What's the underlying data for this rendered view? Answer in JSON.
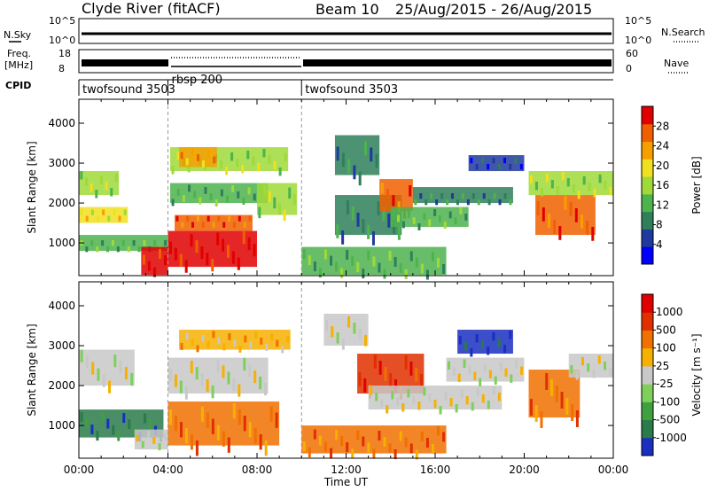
{
  "header": {
    "station": "Clyde River (fitACF)",
    "beam": "Beam 10",
    "dates": "25/Aug/2015 - 26/Aug/2015"
  },
  "nsky": {
    "label": "N.Sky",
    "ticks": [
      "10^5",
      "10^0"
    ],
    "right_ticks": [
      "10^5",
      "10^0"
    ],
    "right_label": "N.Search"
  },
  "freq": {
    "label_1": "Freq.",
    "label_2": "[MHz]",
    "left_ticks": [
      "18",
      "8"
    ],
    "right_ticks": [
      "60",
      "0"
    ],
    "right_label": "Nave"
  },
  "cpid": {
    "label": "CPID",
    "segments": [
      {
        "name": "twofsound 3503",
        "start_hour": 0
      },
      {
        "name": "rbsp 200",
        "start_hour": 4
      },
      {
        "name": "twofsound 3503",
        "start_hour": 10
      }
    ]
  },
  "chart_data": [
    {
      "type": "heatmap",
      "name": "power-panel",
      "ylabel": "Slant Range [km]",
      "yticks": [
        "4000",
        "3000",
        "2000",
        "1000"
      ],
      "ylim": [
        180,
        4600
      ],
      "xlim": [
        0,
        24
      ],
      "colorbar_label": "Power [dB]",
      "colorbar_ticks": [
        "28",
        "24",
        "20",
        "16",
        "12",
        "8",
        "4"
      ],
      "colors": [
        "#0000ff",
        "#1f3a9e",
        "#2e7f5a",
        "#4db34d",
        "#9fd93a",
        "#f0e020",
        "#f6a000",
        "#f06000",
        "#e00000"
      ],
      "regions": [
        {
          "t": [
            0.0,
            1.8
          ],
          "r": [
            2200,
            2800
          ],
          "level": 4
        },
        {
          "t": [
            0.0,
            2.2
          ],
          "r": [
            1500,
            1900
          ],
          "level": 5
        },
        {
          "t": [
            0.0,
            4.0
          ],
          "r": [
            800,
            1200
          ],
          "level": 3
        },
        {
          "t": [
            2.8,
            4.0
          ],
          "r": [
            200,
            900
          ],
          "level": 8
        },
        {
          "t": [
            4.0,
            8.0
          ],
          "r": [
            400,
            1300
          ],
          "level": 8
        },
        {
          "t": [
            4.3,
            7.8
          ],
          "r": [
            1300,
            1700
          ],
          "level": 7
        },
        {
          "t": [
            4.1,
            8.5
          ],
          "r": [
            2000,
            2500
          ],
          "level": 3
        },
        {
          "t": [
            4.1,
            9.4
          ],
          "r": [
            2800,
            3400
          ],
          "level": 4
        },
        {
          "t": [
            4.5,
            6.2
          ],
          "r": [
            2900,
            3400
          ],
          "level": 6
        },
        {
          "t": [
            8.0,
            9.8
          ],
          "r": [
            1700,
            2500
          ],
          "level": 4
        },
        {
          "t": [
            10.0,
            16.5
          ],
          "r": [
            200,
            900
          ],
          "level": 3
        },
        {
          "t": [
            11.5,
            14.5
          ],
          "r": [
            1200,
            2200
          ],
          "level": 2
        },
        {
          "t": [
            13.5,
            15.0
          ],
          "r": [
            1800,
            2600
          ],
          "level": 7
        },
        {
          "t": [
            14.0,
            17.5
          ],
          "r": [
            1400,
            1900
          ],
          "level": 3
        },
        {
          "t": [
            15.0,
            19.5
          ],
          "r": [
            2000,
            2400
          ],
          "level": 2
        },
        {
          "t": [
            17.5,
            20.0
          ],
          "r": [
            2800,
            3200
          ],
          "level": 1
        },
        {
          "t": [
            20.5,
            23.2
          ],
          "r": [
            1200,
            2200
          ],
          "level": 7
        },
        {
          "t": [
            20.2,
            24.0
          ],
          "r": [
            2200,
            2800
          ],
          "level": 4
        },
        {
          "t": [
            11.5,
            13.5
          ],
          "r": [
            2700,
            3700
          ],
          "level": 2
        }
      ]
    },
    {
      "type": "heatmap",
      "name": "velocity-panel",
      "ylabel": "Slant Range [km]",
      "yticks": [
        "4000",
        "3000",
        "2000",
        "1000"
      ],
      "ylim": [
        180,
        4600
      ],
      "xlim": [
        0,
        24
      ],
      "xticks": [
        "00:00",
        "04:00",
        "08:00",
        "12:00",
        "16:00",
        "20:00",
        "00:00"
      ],
      "xlabel": "Time UT",
      "colorbar_label": "Velocity [m s⁻¹]",
      "colorbar_ticks": [
        "1000",
        "500",
        "100",
        "25",
        "-25",
        "-100",
        "-500",
        "-1000"
      ],
      "colors": [
        "#1a2fc0",
        "#2a7a4a",
        "#3fa040",
        "#7fd05a",
        "#c8c8c8",
        "#f6b000",
        "#f07000",
        "#e03000",
        "#e00000"
      ],
      "regions": [
        {
          "t": [
            0.0,
            2.5
          ],
          "r": [
            2000,
            2900
          ],
          "level": 4
        },
        {
          "t": [
            0.0,
            3.8
          ],
          "r": [
            700,
            1400
          ],
          "level": 1
        },
        {
          "t": [
            2.5,
            4.0
          ],
          "r": [
            400,
            900
          ],
          "level": 4
        },
        {
          "t": [
            4.0,
            9.0
          ],
          "r": [
            500,
            1600
          ],
          "level": 6
        },
        {
          "t": [
            4.0,
            8.5
          ],
          "r": [
            1800,
            2700
          ],
          "level": 4
        },
        {
          "t": [
            4.5,
            9.5
          ],
          "r": [
            2900,
            3400
          ],
          "level": 5
        },
        {
          "t": [
            10.0,
            16.5
          ],
          "r": [
            300,
            1000
          ],
          "level": 6
        },
        {
          "t": [
            12.5,
            15.5
          ],
          "r": [
            1800,
            2800
          ],
          "level": 7
        },
        {
          "t": [
            13.0,
            19.0
          ],
          "r": [
            1400,
            2000
          ],
          "level": 4
        },
        {
          "t": [
            16.5,
            20.0
          ],
          "r": [
            2100,
            2700
          ],
          "level": 4
        },
        {
          "t": [
            17.0,
            19.5
          ],
          "r": [
            2800,
            3400
          ],
          "level": 0
        },
        {
          "t": [
            20.2,
            22.5
          ],
          "r": [
            1200,
            2400
          ],
          "level": 6
        },
        {
          "t": [
            22.0,
            24.0
          ],
          "r": [
            2200,
            2800
          ],
          "level": 4
        },
        {
          "t": [
            11.0,
            13.0
          ],
          "r": [
            3000,
            3800
          ],
          "level": 4
        }
      ]
    }
  ]
}
